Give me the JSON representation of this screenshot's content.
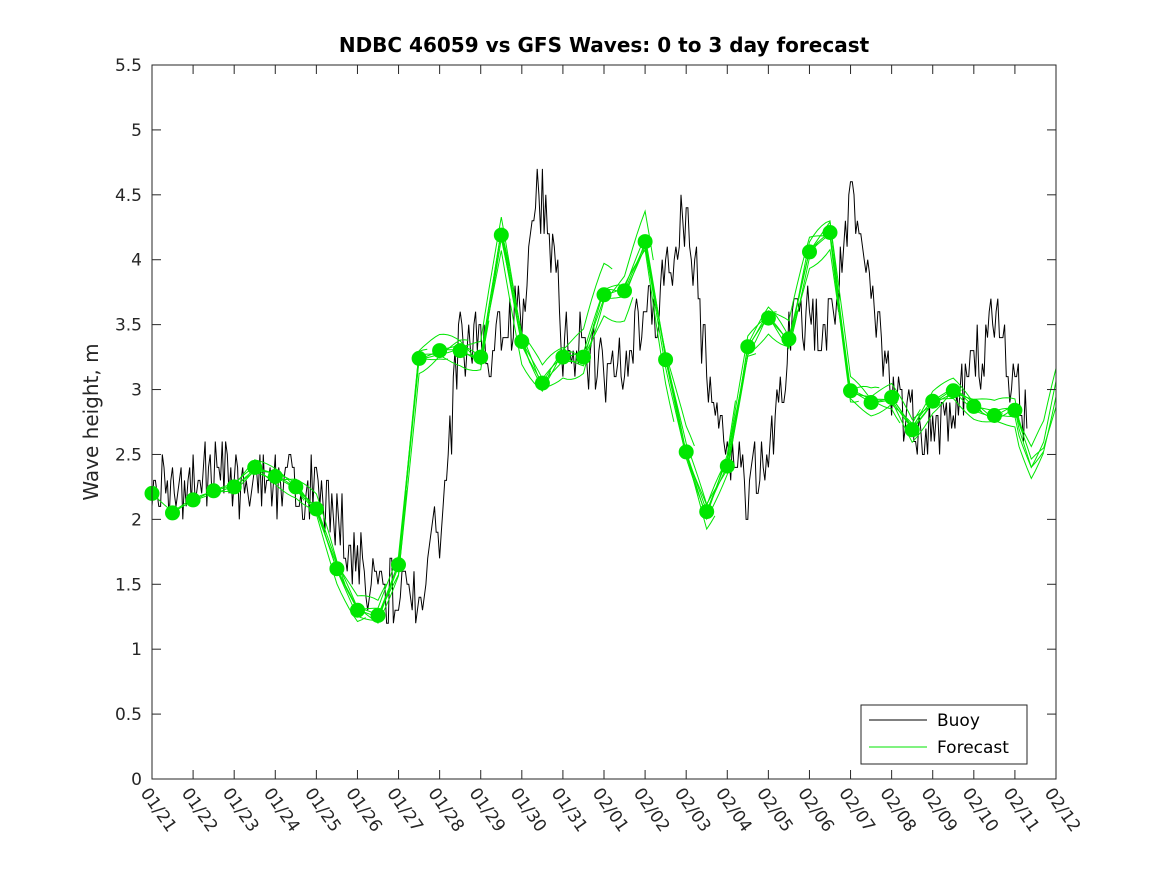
{
  "chart_data": {
    "type": "line",
    "title": "NDBC 46059 vs GFS Waves: 0 to 3 day forecast",
    "xlabel": "",
    "ylabel": "Wave height, m",
    "ylim": [
      0,
      5.5
    ],
    "yticks": [
      "0",
      "0.5",
      "1",
      "1.5",
      "2",
      "2.5",
      "3",
      "3.5",
      "4",
      "4.5",
      "5",
      "5.5"
    ],
    "xlim_days": [
      0,
      22
    ],
    "xticks": [
      "01/21",
      "01/22",
      "01/23",
      "01/24",
      "01/25",
      "01/26",
      "01/27",
      "01/28",
      "01/29",
      "01/30",
      "01/31",
      "02/01",
      "02/02",
      "02/03",
      "02/04",
      "02/05",
      "02/06",
      "02/07",
      "02/08",
      "02/09",
      "02/10",
      "02/11",
      "02/12"
    ],
    "legend": {
      "position": "bottom-right",
      "entries": [
        "Buoy",
        "Forecast"
      ]
    },
    "colors": {
      "buoy": "#000000",
      "forecast": "#00e600"
    },
    "buoy_trend": {
      "x": [
        0,
        0.5,
        1,
        1.5,
        2,
        2.5,
        3,
        3.5,
        4,
        4.5,
        5,
        5.5,
        6,
        6.3,
        6.6,
        7,
        7.3,
        7.5,
        7.8,
        8,
        8.5,
        9,
        9.3,
        9.6,
        10,
        10.5,
        11,
        11.5,
        12,
        12.2,
        12.5,
        13,
        13.5,
        13.8,
        14,
        14.5,
        15,
        15.5,
        16,
        16.3,
        16.6,
        17,
        17.5,
        18,
        18.5,
        19,
        19.5,
        20,
        20.3,
        20.6,
        21,
        21.3
      ],
      "y": [
        2.3,
        2.2,
        2.3,
        2.4,
        2.3,
        2.35,
        2.3,
        2.3,
        2.25,
        2.0,
        1.7,
        1.5,
        1.4,
        1.4,
        1.6,
        1.9,
        2.8,
        3.5,
        3.3,
        3.3,
        3.4,
        3.6,
        4.5,
        4.4,
        3.4,
        3.3,
        3.1,
        3.2,
        3.6,
        3.5,
        3.9,
        4.4,
        3.2,
        2.8,
        2.5,
        2.2,
        2.5,
        3.4,
        3.6,
        3.4,
        3.6,
        4.4,
        3.7,
        3.0,
        2.8,
        2.7,
        2.8,
        3.2,
        3.4,
        3.5,
        3.0,
        2.8
      ]
    },
    "forecast_markers": {
      "x": [
        0,
        0.5,
        1,
        1.5,
        2,
        2.5,
        3,
        3.5,
        4,
        4.5,
        5,
        5.5,
        6,
        6.5,
        7,
        7.5,
        8,
        8.5,
        9,
        9.5,
        10,
        10.5,
        11,
        11.5,
        12,
        12.5,
        13,
        13.5,
        14,
        14.5,
        15,
        15.5,
        16,
        16.5,
        17,
        17.5,
        18,
        18.5,
        19,
        19.5,
        20,
        20.5,
        21
      ],
      "y": [
        2.2,
        2.05,
        2.15,
        2.22,
        2.25,
        2.4,
        2.33,
        2.25,
        2.08,
        1.62,
        1.3,
        1.26,
        1.65,
        3.24,
        3.3,
        3.3,
        3.25,
        4.19,
        3.37,
        3.05,
        3.25,
        3.25,
        3.73,
        3.76,
        4.14,
        3.23,
        2.52,
        2.06,
        2.41,
        3.33,
        3.55,
        3.39,
        4.06,
        4.21,
        2.99,
        2.9,
        2.94,
        2.69,
        2.91,
        2.99,
        2.87,
        2.8,
        2.84
      ]
    },
    "forecast_runs": [
      {
        "start": 0,
        "end": 3.2,
        "amp": 0.05,
        "bias": 0.0
      },
      {
        "start": 0.5,
        "end": 3.7,
        "amp": 0.08,
        "bias": 0.02
      },
      {
        "start": 1,
        "end": 4.2,
        "amp": 0.1,
        "bias": -0.02
      },
      {
        "start": 1.5,
        "end": 4.7,
        "amp": 0.12,
        "bias": 0.03
      },
      {
        "start": 2,
        "end": 5.2,
        "amp": 0.12,
        "bias": -0.03
      },
      {
        "start": 2.5,
        "end": 5.7,
        "amp": 0.1,
        "bias": 0.05
      },
      {
        "start": 3,
        "end": 6.2,
        "amp": 0.1,
        "bias": 0.0
      },
      {
        "start": 3.5,
        "end": 6.7,
        "amp": 0.08,
        "bias": -0.02
      },
      {
        "start": 4,
        "end": 7.2,
        "amp": 0.1,
        "bias": 0.03
      },
      {
        "start": 4.5,
        "end": 7.7,
        "amp": 0.15,
        "bias": -0.05
      },
      {
        "start": 5,
        "end": 8.2,
        "amp": 0.15,
        "bias": 0.05
      },
      {
        "start": 5.5,
        "end": 8.7,
        "amp": 0.15,
        "bias": -0.04
      },
      {
        "start": 6,
        "end": 9.2,
        "amp": 0.15,
        "bias": 0.06
      },
      {
        "start": 6.5,
        "end": 9.7,
        "amp": 0.18,
        "bias": -0.06
      },
      {
        "start": 7,
        "end": 10.2,
        "amp": 0.15,
        "bias": 0.03
      },
      {
        "start": 7.5,
        "end": 10.7,
        "amp": 0.18,
        "bias": -0.03
      },
      {
        "start": 8,
        "end": 11.2,
        "amp": 0.2,
        "bias": 0.1
      },
      {
        "start": 8.5,
        "end": 11.7,
        "amp": 0.18,
        "bias": -0.08
      },
      {
        "start": 9,
        "end": 12.2,
        "amp": 0.2,
        "bias": 0.05
      },
      {
        "start": 9.5,
        "end": 12.7,
        "amp": 0.15,
        "bias": -0.05
      },
      {
        "start": 10,
        "end": 13.2,
        "amp": 0.15,
        "bias": 0.08
      },
      {
        "start": 10.5,
        "end": 13.7,
        "amp": 0.12,
        "bias": -0.06
      },
      {
        "start": 11,
        "end": 14.2,
        "amp": 0.12,
        "bias": 0.04
      },
      {
        "start": 11.5,
        "end": 14.7,
        "amp": 0.15,
        "bias": -0.05
      },
      {
        "start": 12,
        "end": 15.2,
        "amp": 0.15,
        "bias": 0.06
      },
      {
        "start": 12.5,
        "end": 15.7,
        "amp": 0.15,
        "bias": -0.04
      },
      {
        "start": 13,
        "end": 16.2,
        "amp": 0.15,
        "bias": 0.05
      },
      {
        "start": 13.5,
        "end": 16.7,
        "amp": 0.2,
        "bias": -0.07
      },
      {
        "start": 14,
        "end": 17.2,
        "amp": 0.2,
        "bias": 0.1
      },
      {
        "start": 14.5,
        "end": 17.7,
        "amp": 0.2,
        "bias": -0.08
      },
      {
        "start": 15,
        "end": 18.2,
        "amp": 0.15,
        "bias": 0.05
      },
      {
        "start": 15.5,
        "end": 18.7,
        "amp": 0.12,
        "bias": -0.05
      },
      {
        "start": 16,
        "end": 19.2,
        "amp": 0.12,
        "bias": 0.05
      },
      {
        "start": 16.5,
        "end": 19.7,
        "amp": 0.12,
        "bias": -0.04
      },
      {
        "start": 17,
        "end": 20.2,
        "amp": 0.1,
        "bias": 0.04
      },
      {
        "start": 17.5,
        "end": 20.7,
        "amp": 0.1,
        "bias": -0.03
      },
      {
        "start": 18,
        "end": 21.2,
        "amp": 0.1,
        "bias": 0.05
      },
      {
        "start": 18.5,
        "end": 21.7,
        "amp": 0.12,
        "bias": -0.05
      },
      {
        "start": 19,
        "end": 22,
        "amp": 0.12,
        "bias": 0.06
      },
      {
        "start": 19.5,
        "end": 22,
        "amp": 0.12,
        "bias": -0.06
      },
      {
        "start": 20,
        "end": 22,
        "amp": 0.12,
        "bias": 0.03
      },
      {
        "start": 20.5,
        "end": 22,
        "amp": 0.12,
        "bias": -0.03
      }
    ],
    "forecast_tail": {
      "x": [
        21.1,
        21.4,
        21.7,
        22
      ],
      "y": [
        2.7,
        2.45,
        2.6,
        3.0
      ]
    }
  }
}
